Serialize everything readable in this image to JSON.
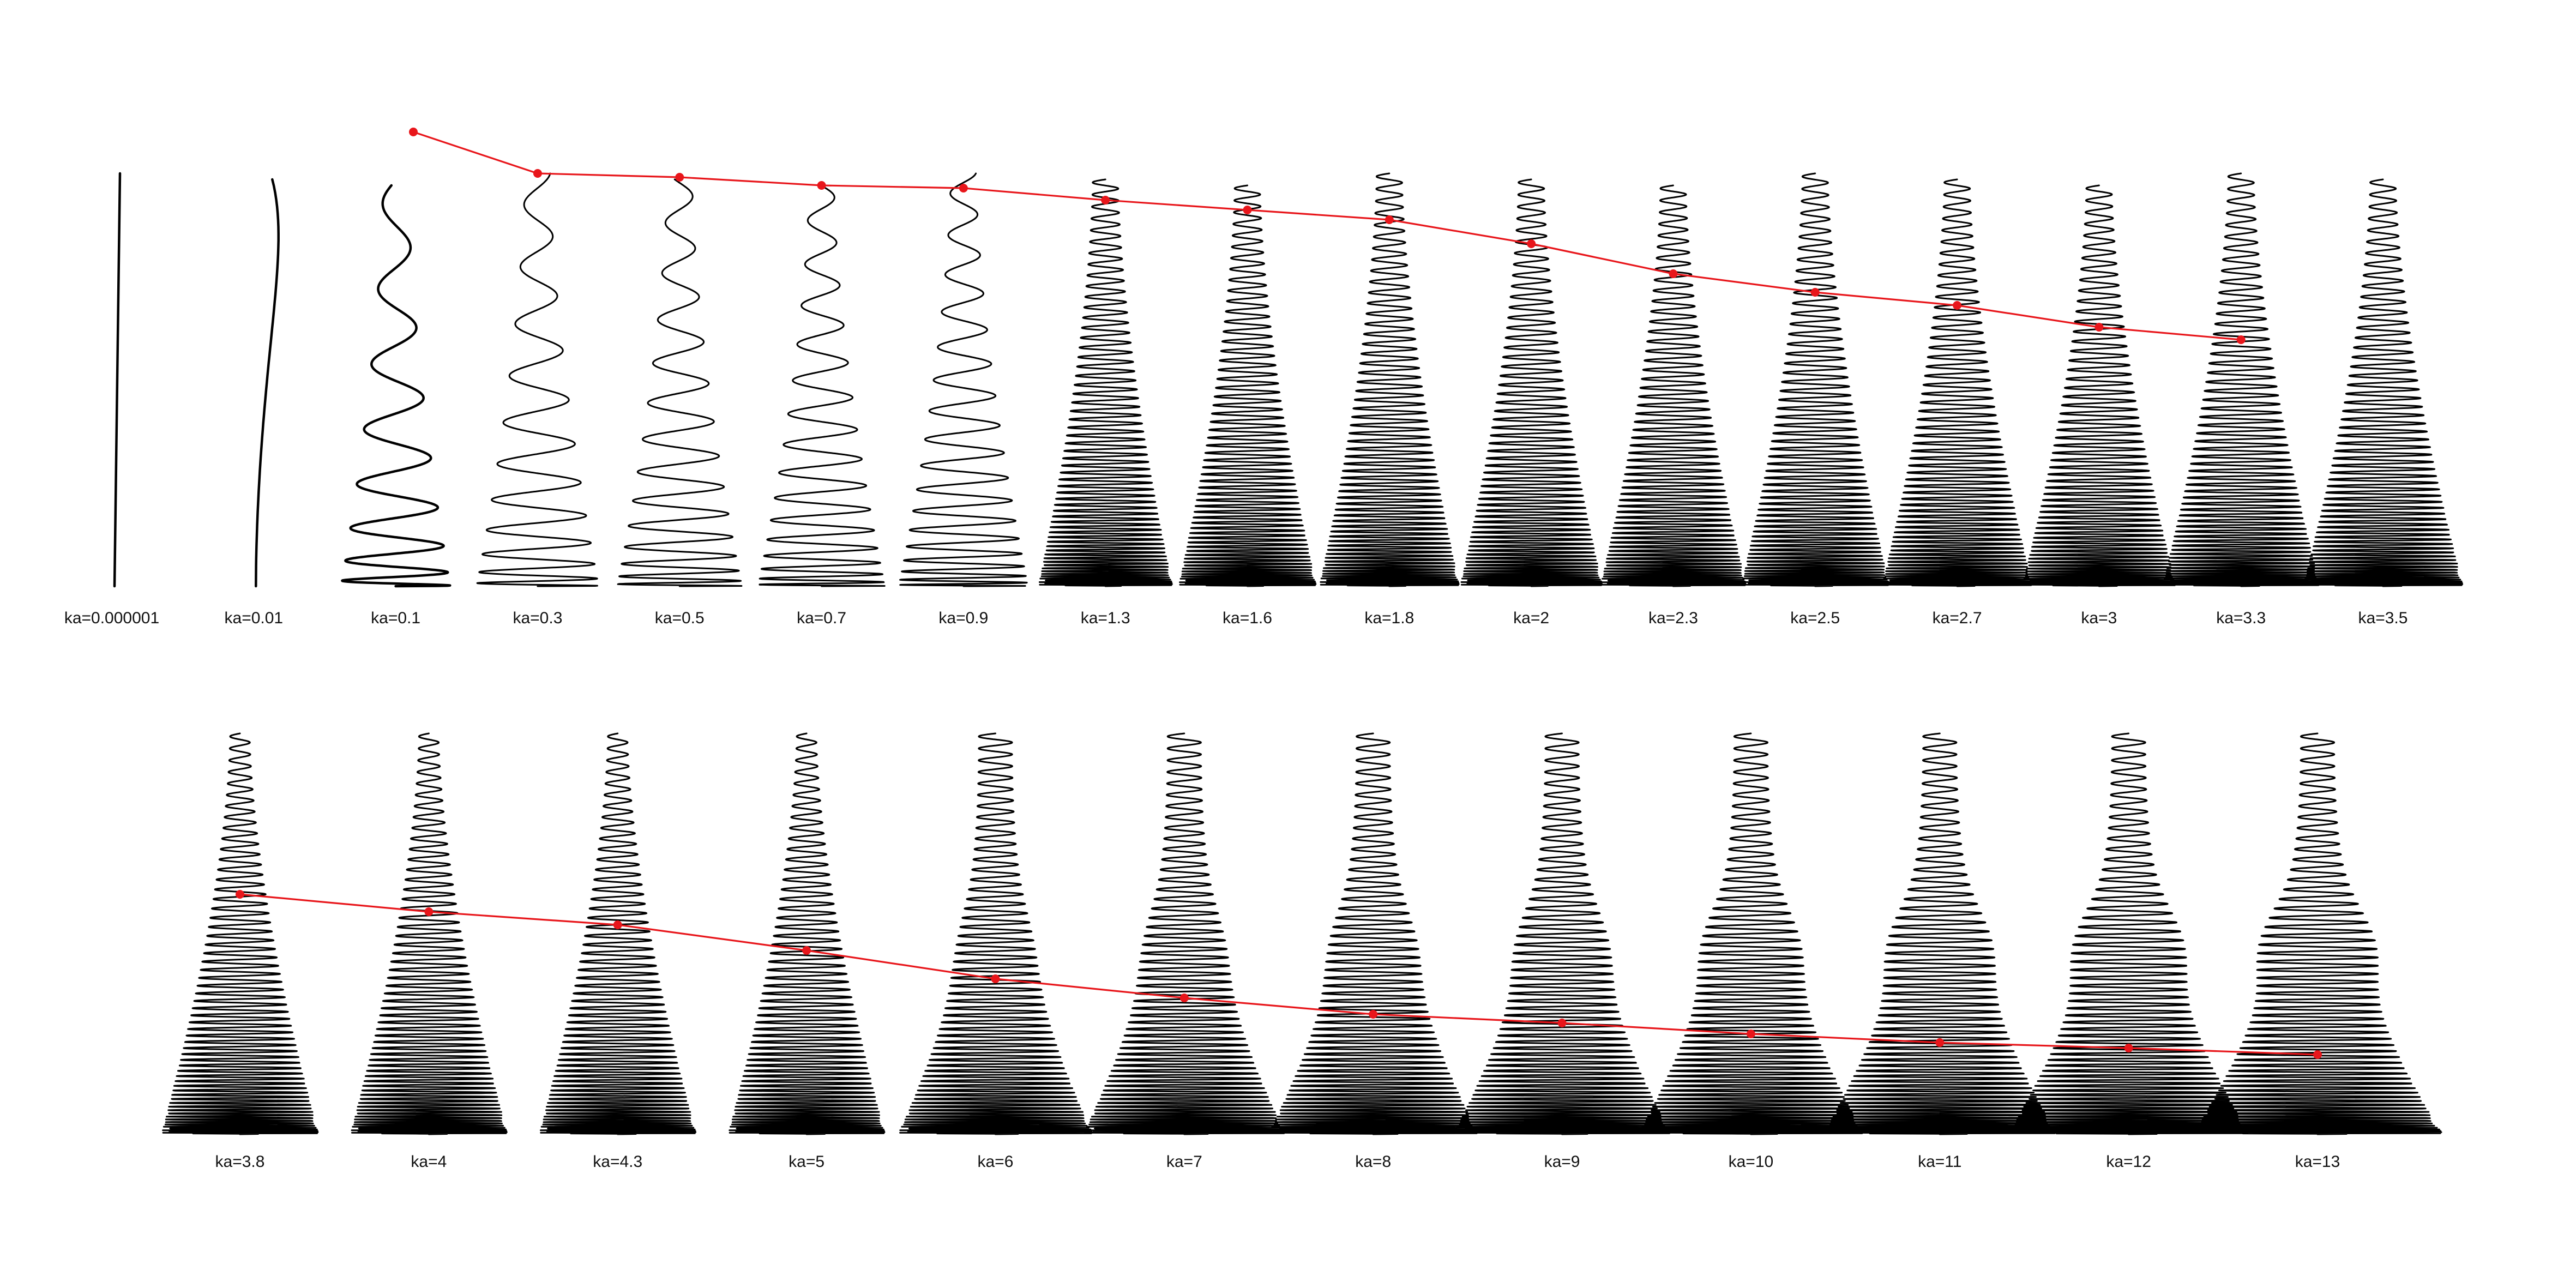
{
  "colors": {
    "background": "#ffffff",
    "wave": "#000000",
    "trend": "#e8161b",
    "label": "#111111"
  },
  "rows": [
    {
      "id": "row-1",
      "panels": [
        {
          "label": "ka=0.000001",
          "k": 1e-06
        },
        {
          "label": "ka=0.01",
          "k": 0.01
        },
        {
          "label": "ka=0.1",
          "k": 0.1
        },
        {
          "label": "ka=0.3",
          "k": 0.3
        },
        {
          "label": "ka=0.5",
          "k": 0.5
        },
        {
          "label": "ka=0.7",
          "k": 0.7
        },
        {
          "label": "ka=0.9",
          "k": 0.9
        },
        {
          "label": "ka=1.3",
          "k": 1.3
        },
        {
          "label": "ka=1.6",
          "k": 1.6
        },
        {
          "label": "ka=1.8",
          "k": 1.8
        },
        {
          "label": "ka=2",
          "k": 2
        },
        {
          "label": "ka=2.3",
          "k": 2.3
        },
        {
          "label": "ka=2.5",
          "k": 2.5
        },
        {
          "label": "ka=2.7",
          "k": 2.7
        },
        {
          "label": "ka=3",
          "k": 3
        },
        {
          "label": "ka=3.3",
          "k": 3.3
        },
        {
          "label": "ka=3.5",
          "k": 3.5
        }
      ]
    },
    {
      "id": "row-2",
      "panels": [
        {
          "label": "ka=3.8",
          "k": 3.8
        },
        {
          "label": "ka=4",
          "k": 4
        },
        {
          "label": "ka=4.3",
          "k": 4.3
        },
        {
          "label": "ka=5",
          "k": 5
        },
        {
          "label": "ka=6",
          "k": 6
        },
        {
          "label": "ka=7",
          "k": 7
        },
        {
          "label": "ka=8",
          "k": 8
        },
        {
          "label": "ka=9",
          "k": 9
        },
        {
          "label": "ka=10",
          "k": 10
        },
        {
          "label": "ka=11",
          "k": 11
        },
        {
          "label": "ka=12",
          "k": 12
        },
        {
          "label": "ka=13",
          "k": 13
        }
      ]
    }
  ]
}
